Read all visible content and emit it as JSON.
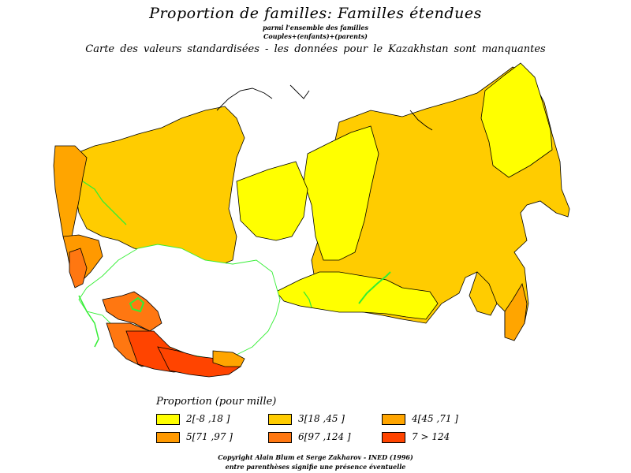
{
  "title": "Proportion de familles: Familles étendues",
  "subtitle1": "parmi l'ensemble des familles",
  "subtitle2": "Couples+(enfants)+(parents)",
  "subtitle3": "Carte des valeurs standardisées  -  les données pour le Kazakhstan sont manquantes",
  "colors": {
    "class2": "#ffff00",
    "class3": "#ffcc00",
    "class4": "#ffa500",
    "class5": "#ff9900",
    "class6": "#ff7711",
    "class7": "#ff4400",
    "missing": "#ffffff",
    "water": "#33ee33"
  },
  "legend": {
    "title": "Proportion (pour mille)",
    "items": [
      {
        "label": "2[-8 ,18 ]",
        "color": "#ffff00"
      },
      {
        "label": "3[18 ,45 ]",
        "color": "#ffcc00"
      },
      {
        "label": "4[45 ,71 ]",
        "color": "#ffa500"
      },
      {
        "label": "5[71 ,97 ]",
        "color": "#ff9900"
      },
      {
        "label": "6[97 ,124 ]",
        "color": "#ff7711"
      },
      {
        "label": "7 > 124",
        "color": "#ff4400"
      }
    ]
  },
  "copyright": "Copyright Alain Blum et Serge Zakharov - INED (1996)",
  "note": "entre parenthèses signifie une présence éventuelle"
}
